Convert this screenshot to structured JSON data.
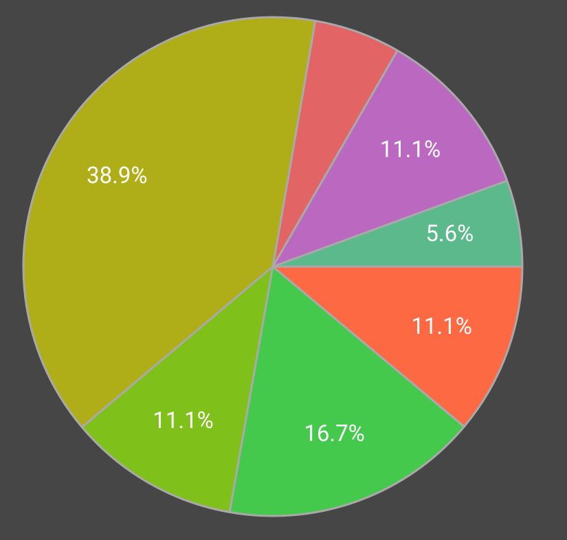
{
  "chart_data": {
    "type": "pie",
    "values": [
      5.6,
      11.1,
      5.6,
      38.9,
      11.1,
      16.7,
      11.1
    ],
    "value_labels": [
      "5.6%",
      "11.1%",
      null,
      "38.9%",
      "11.1%",
      "16.7%",
      "11.1%"
    ],
    "colors": [
      "#5bb98c",
      "#ba68c0",
      "#e36465",
      "#b0ae18",
      "#80c01a",
      "#45c94d",
      "#fd6943"
    ]
  }
}
